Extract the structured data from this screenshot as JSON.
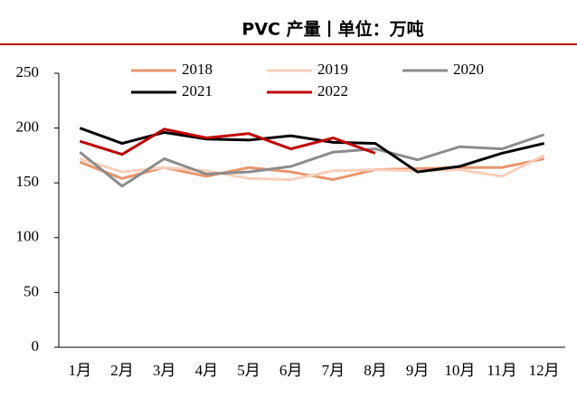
{
  "chart_data": {
    "type": "line",
    "title": "PVC 产量丨单位：万吨",
    "categories": [
      "1月",
      "2月",
      "3月",
      "4月",
      "5月",
      "6月",
      "7月",
      "8月",
      "9月",
      "10月",
      "11月",
      "12月"
    ],
    "series": [
      {
        "name": "2018",
        "color": "#e8956d",
        "values": [
          169,
          154,
          164,
          156,
          164,
          160,
          153,
          162,
          163,
          164,
          164,
          172
        ]
      },
      {
        "name": "2019",
        "color": "#f7cfbb",
        "values": [
          172,
          160,
          164,
          161,
          154,
          153,
          161,
          162,
          161,
          162,
          156,
          175
        ]
      },
      {
        "name": "2020",
        "color": "#8c8c8c",
        "values": [
          178,
          147,
          172,
          158,
          160,
          165,
          178,
          181,
          171,
          183,
          181,
          194
        ]
      },
      {
        "name": "2021",
        "color": "#000000",
        "values": [
          200,
          186,
          196,
          190,
          189,
          193,
          187,
          186,
          160,
          165,
          177,
          186
        ]
      },
      {
        "name": "2022",
        "color": "#c00000",
        "values": [
          188,
          176,
          199,
          191,
          195,
          181,
          191,
          177,
          null,
          null,
          null,
          null
        ]
      }
    ],
    "ylim": [
      0,
      250
    ],
    "yticks": [
      0,
      50,
      100,
      150,
      200,
      250
    ]
  }
}
